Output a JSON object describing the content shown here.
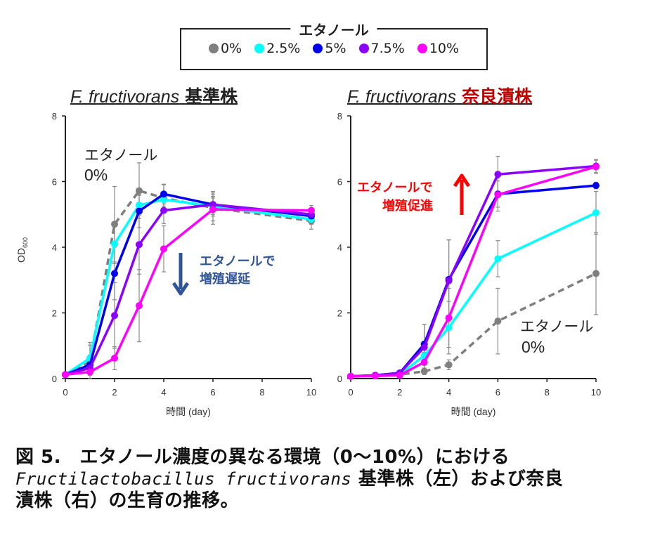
{
  "legend": {
    "title": "エタノール",
    "items": [
      {
        "label": "0%",
        "color": "#7f7f7f"
      },
      {
        "label": "2.5%",
        "color": "#00ffff"
      },
      {
        "label": "5%",
        "color": "#0000ee"
      },
      {
        "label": "7.5%",
        "color": "#8b00ff"
      },
      {
        "label": "10%",
        "color": "#ff00ff"
      }
    ]
  },
  "caption": {
    "line1": "図 5.　エタノール濃度の異なる環境（0～10%）における",
    "species": "Fructilactobacillus fructivorans",
    "line2_rest": " 基準株（左）および奈良",
    "line3": "漬株（右）の生育の推移。"
  },
  "chart_data": [
    {
      "type": "line",
      "title_species": "F. fructivorans",
      "title_strain": "基準株",
      "title_strain_color": "#222222",
      "xlabel": "時間 (day)",
      "ylabel": "OD",
      "ylabel_sub": "600",
      "xlim": [
        0,
        10
      ],
      "ylim": [
        0,
        8
      ],
      "xticks": [
        "0",
        "2",
        "4",
        "6",
        "8",
        "10"
      ],
      "yticks": [
        "0",
        "2",
        "4",
        "6",
        "8"
      ],
      "grid": false,
      "x": [
        0,
        1,
        2,
        3,
        4,
        6,
        10
      ],
      "series": [
        {
          "name": "0%",
          "color": "#7f7f7f",
          "dashed": true,
          "values": [
            0.12,
            0.5,
            4.7,
            5.72,
            5.5,
            5.2,
            4.8
          ],
          "err": [
            0.05,
            0.6,
            1.15,
            0.85,
            0.4,
            0.5,
            0.25
          ]
        },
        {
          "name": "2.5%",
          "color": "#00ffff",
          "dashed": false,
          "values": [
            0.12,
            0.62,
            4.1,
            5.28,
            5.45,
            5.25,
            4.85
          ],
          "err": [
            0.05,
            0.4,
            0.6,
            0.3,
            0.2,
            0.3,
            0.15
          ]
        },
        {
          "name": "5%",
          "color": "#0000ee",
          "dashed": false,
          "values": [
            0.12,
            0.42,
            3.2,
            5.1,
            5.62,
            5.3,
            4.95
          ],
          "err": [
            0.05,
            0.3,
            0.8,
            0.5,
            0.3,
            0.3,
            0.15
          ]
        },
        {
          "name": "7.5%",
          "color": "#8b00ff",
          "dashed": false,
          "values": [
            0.12,
            0.32,
            1.92,
            4.08,
            5.12,
            5.3,
            5.0
          ],
          "err": [
            0.05,
            0.2,
            1.0,
            0.9,
            0.4,
            0.35,
            0.15
          ]
        },
        {
          "name": "10%",
          "color": "#ff00ff",
          "dashed": false,
          "values": [
            0.12,
            0.2,
            0.62,
            2.22,
            3.95,
            5.15,
            5.12
          ],
          "err": [
            0.05,
            0.1,
            0.35,
            1.1,
            0.7,
            0.35,
            0.15
          ]
        }
      ],
      "annotations": [
        {
          "text": "エタノール",
          "color": "#222222"
        },
        {
          "text": "0%",
          "color": "#222222"
        },
        {
          "text": "エタノールで",
          "color": "#2f5597"
        },
        {
          "text": "増殖遅延",
          "color": "#2f5597"
        }
      ],
      "arrow": {
        "direction": "down",
        "color": "#2f5597"
      }
    },
    {
      "type": "line",
      "title_species": "F. fructivorans",
      "title_strain": "奈良漬株",
      "title_strain_color": "#c00000",
      "xlabel": "時間 (day)",
      "ylabel": "",
      "ylabel_sub": "",
      "xlim": [
        0,
        10
      ],
      "ylim": [
        0,
        8
      ],
      "xticks": [
        "0",
        "2",
        "4",
        "6",
        "8",
        "10"
      ],
      "yticks": [
        "0",
        "2",
        "4",
        "6",
        "8"
      ],
      "grid": false,
      "x": [
        0,
        1,
        2,
        3,
        4,
        6,
        10
      ],
      "series": [
        {
          "name": "0%",
          "color": "#7f7f7f",
          "dashed": true,
          "values": [
            0.07,
            0.09,
            0.12,
            0.22,
            0.42,
            1.75,
            3.2
          ],
          "err": [
            0.02,
            0.02,
            0.03,
            0.1,
            0.15,
            1.0,
            1.25
          ]
        },
        {
          "name": "2.5%",
          "color": "#00ffff",
          "dashed": false,
          "values": [
            0.07,
            0.09,
            0.12,
            0.7,
            1.55,
            3.65,
            5.05
          ],
          "err": [
            0.02,
            0.02,
            0.03,
            0.3,
            0.8,
            0.55,
            0.65
          ]
        },
        {
          "name": "5%",
          "color": "#0000ee",
          "dashed": false,
          "values": [
            0.07,
            0.1,
            0.17,
            1.05,
            3.02,
            5.62,
            5.88
          ],
          "err": [
            0.02,
            0.02,
            0.03,
            0.6,
            1.2,
            0.4,
            0.1
          ]
        },
        {
          "name": "7.5%",
          "color": "#8b00ff",
          "dashed": false,
          "values": [
            0.07,
            0.1,
            0.17,
            0.95,
            2.98,
            6.22,
            6.47
          ],
          "err": [
            0.02,
            0.02,
            0.03,
            0.7,
            1.25,
            0.55,
            0.2
          ]
        },
        {
          "name": "10%",
          "color": "#ff00ff",
          "dashed": false,
          "values": [
            0.07,
            0.08,
            0.1,
            0.5,
            1.85,
            5.6,
            6.45
          ],
          "err": [
            0.02,
            0.02,
            0.03,
            0.3,
            0.9,
            0.5,
            0.2
          ]
        }
      ],
      "annotations": [
        {
          "text": "エタノールで",
          "color": "#ff0000"
        },
        {
          "text": "増殖促進",
          "color": "#ff0000"
        },
        {
          "text": "エタノール",
          "color": "#222222"
        },
        {
          "text": "0%",
          "color": "#222222"
        }
      ],
      "arrow": {
        "direction": "up",
        "color": "#ff0000"
      }
    }
  ]
}
